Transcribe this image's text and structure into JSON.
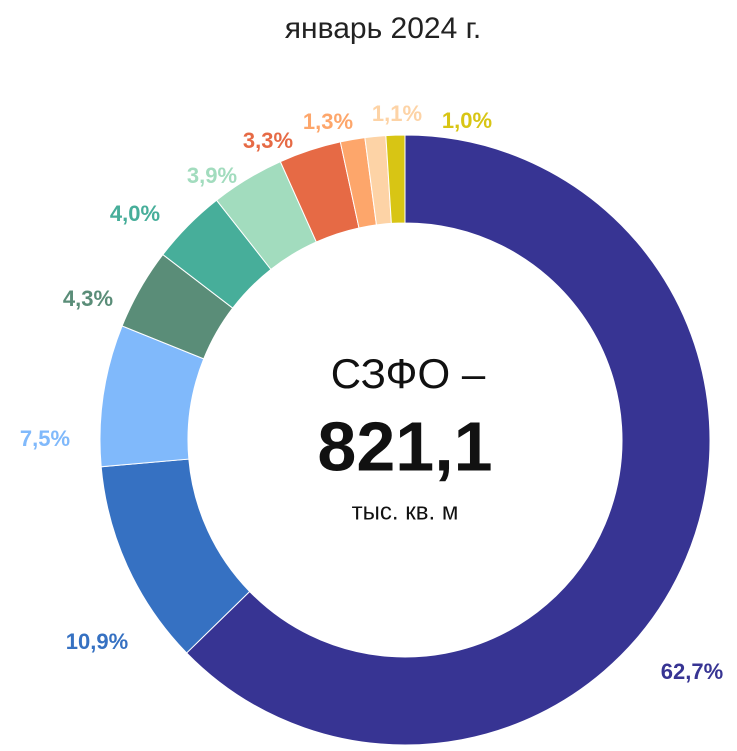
{
  "chart_data": {
    "type": "donut",
    "title": "январь 2024 г.",
    "center_title": "СЗФО –",
    "center_value": "821,1",
    "center_unit": "тыс. кв. м",
    "values": [
      62.7,
      10.9,
      7.5,
      4.3,
      4.0,
      3.9,
      3.3,
      1.3,
      1.1,
      1.0
    ],
    "value_labels": [
      "62,7%",
      "10,9%",
      "7,5%",
      "4,3%",
      "4,0%",
      "3,9%",
      "3,3%",
      "1,3%",
      "1,1%",
      "1,0%"
    ],
    "colors": [
      "#373493",
      "#3671c2",
      "#80b9fb",
      "#5a8d78",
      "#47ae9a",
      "#a2dcbe",
      "#e66a45",
      "#fda66b",
      "#fdd3a6",
      "#d8c514"
    ]
  }
}
